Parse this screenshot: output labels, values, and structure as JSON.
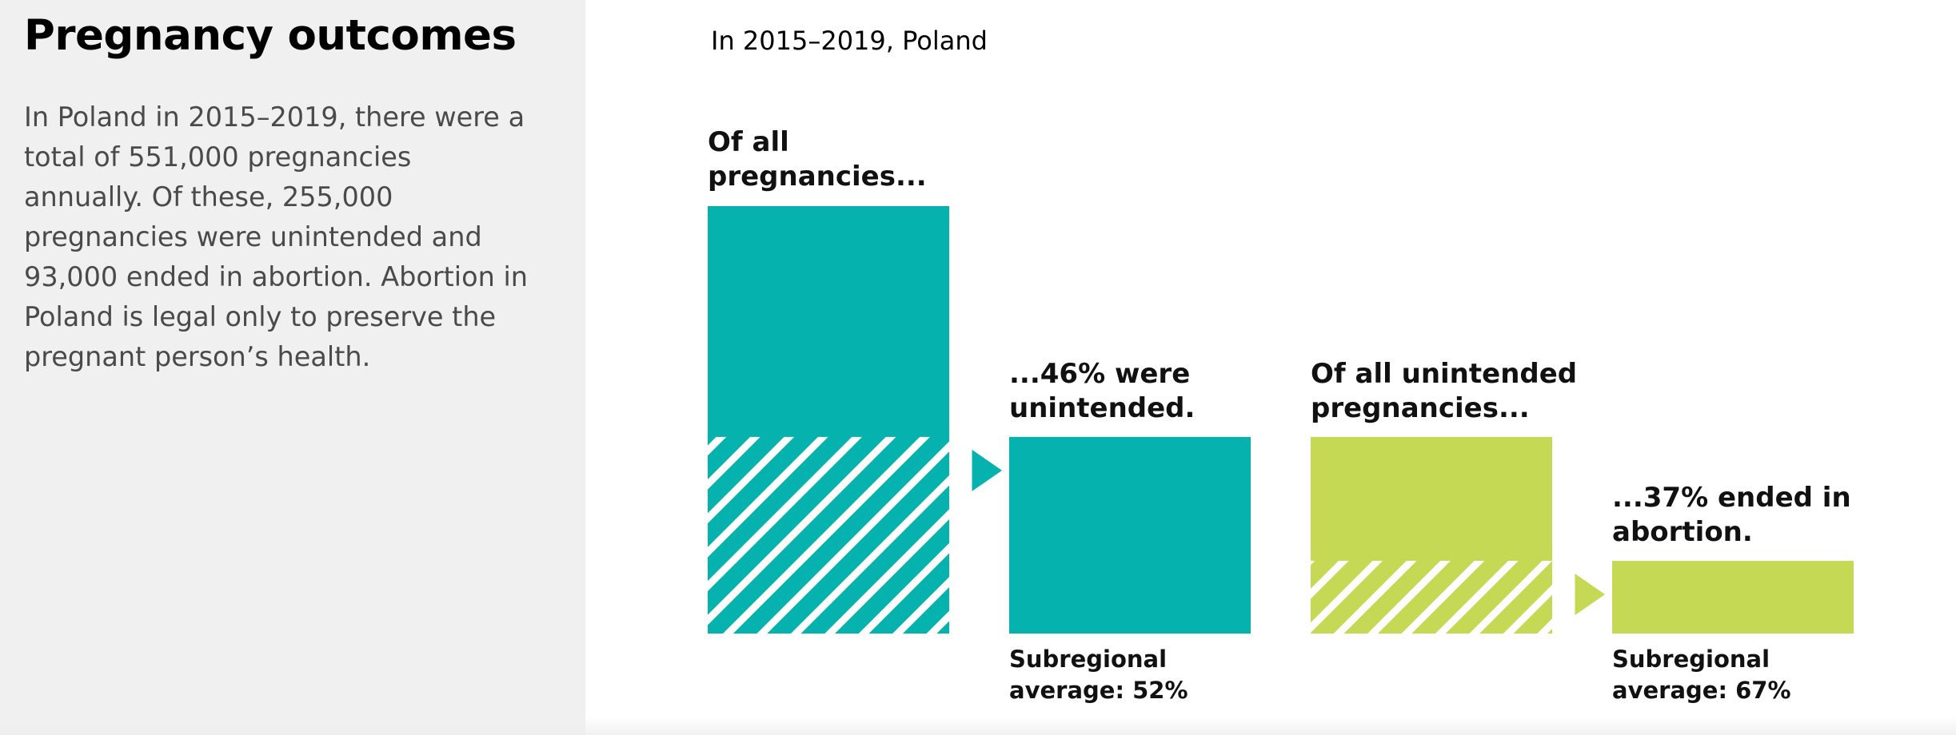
{
  "sidebar": {
    "title": "Pregnancy outcomes",
    "description": "In Poland in 2015–2019, there were a total of 551,000 pregnancies annually. Of these, 255,000 pregnancies were unintended and 93,000 ended in abortion. Abortion in Poland is legal only to preserve the pregnant person’s health."
  },
  "chart_data": {
    "type": "bar",
    "subtitle": "In 2015–2019, Poland",
    "location": "Poland",
    "period": "2015–2019",
    "steps": [
      {
        "label": "Of all pregnancies...",
        "value": 100,
        "highlight_percent": 46,
        "highlight_style": "hatched",
        "color": "#05b2ae"
      },
      {
        "label": "...46% were unintended.",
        "value": 46,
        "note": "Subregional average: 52%",
        "subregional_average_percent": 52,
        "color": "#05b2ae"
      },
      {
        "label": "Of all unintended pregnancies...",
        "value": 46,
        "highlight_percent": 37,
        "highlight_style": "hatched",
        "color": "#c5d955"
      },
      {
        "label": "...37% ended in abortion.",
        "value": 17,
        "note": "Subregional average: 67%",
        "subregional_average_percent": 67,
        "color": "#c5d955"
      }
    ],
    "arrow_icon": "triangle-right-icon"
  },
  "colors": {
    "teal": "#05b2ae",
    "lime": "#c5d955",
    "sidebar_bg": "#f0f0f0"
  }
}
